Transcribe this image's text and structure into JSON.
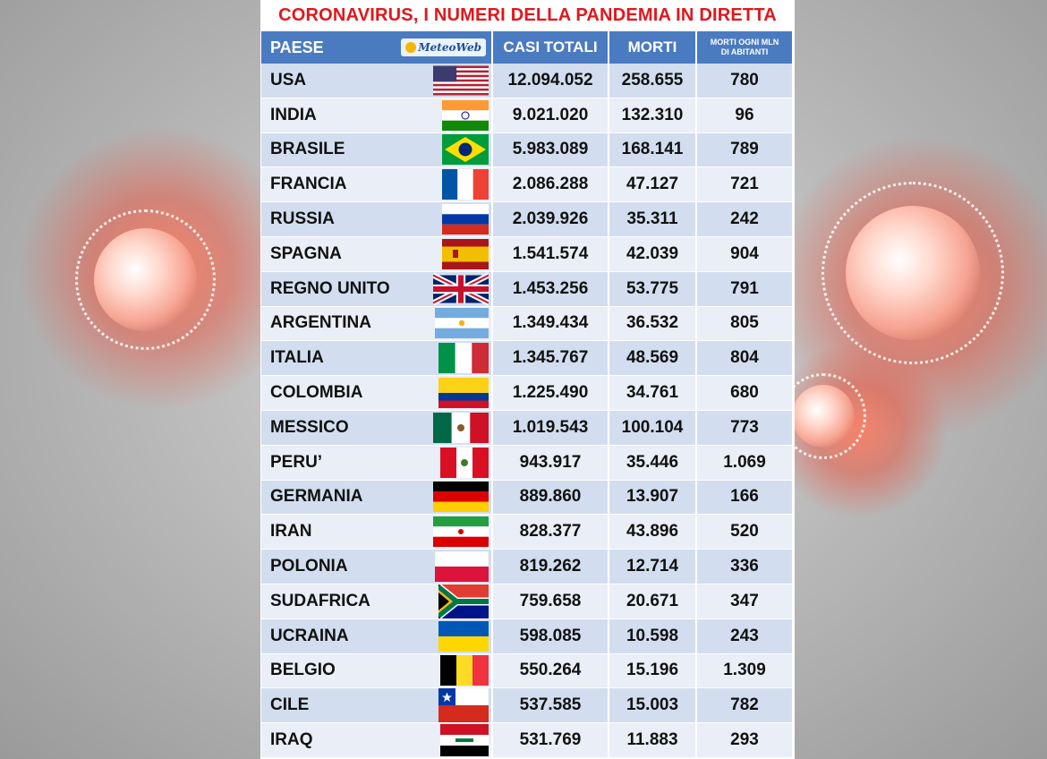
{
  "title": "CORONAVIRUS, I NUMERI DELLA PANDEMIA IN DIRETTA",
  "header": {
    "paese": "PAESE",
    "logo": "MeteoWeb",
    "casi_totali": "CASI TOTALI",
    "morti": "MORTI",
    "morti_mln_line1": "MORTI OGNI MLN",
    "morti_mln_line2": "DI ABITANTI"
  },
  "colors": {
    "title": "#e3161b",
    "header_bg": "#4a7bc0",
    "row_odd": "#d2deef",
    "row_even": "#e9eef7"
  },
  "rows": [
    {
      "paese": "USA",
      "flag": "usa-flag",
      "casi": "12.094.052",
      "morti": "258.655",
      "mln": "780"
    },
    {
      "paese": "INDIA",
      "flag": "india-flag",
      "casi": "9.021.020",
      "morti": "132.310",
      "mln": "96"
    },
    {
      "paese": "BRASILE",
      "flag": "brazil-flag",
      "casi": "5.983.089",
      "morti": "168.141",
      "mln": "789"
    },
    {
      "paese": "FRANCIA",
      "flag": "france-flag",
      "casi": "2.086.288",
      "morti": "47.127",
      "mln": "721"
    },
    {
      "paese": "RUSSIA",
      "flag": "russia-flag",
      "casi": "2.039.926",
      "morti": "35.311",
      "mln": "242"
    },
    {
      "paese": "SPAGNA",
      "flag": "spain-flag",
      "casi": "1.541.574",
      "morti": "42.039",
      "mln": "904"
    },
    {
      "paese": "REGNO UNITO",
      "flag": "uk-flag",
      "casi": "1.453.256",
      "morti": "53.775",
      "mln": "791"
    },
    {
      "paese": "ARGENTINA",
      "flag": "argentina-flag",
      "casi": "1.349.434",
      "morti": "36.532",
      "mln": "805"
    },
    {
      "paese": "ITALIA",
      "flag": "italy-flag",
      "casi": "1.345.767",
      "morti": "48.569",
      "mln": "804"
    },
    {
      "paese": "COLOMBIA",
      "flag": "colombia-flag",
      "casi": "1.225.490",
      "morti": "34.761",
      "mln": "680"
    },
    {
      "paese": "MESSICO",
      "flag": "mexico-flag",
      "casi": "1.019.543",
      "morti": "100.104",
      "mln": "773"
    },
    {
      "paese": "PERU’",
      "flag": "peru-flag",
      "casi": "943.917",
      "morti": "35.446",
      "mln": "1.069"
    },
    {
      "paese": "GERMANIA",
      "flag": "germany-flag",
      "casi": "889.860",
      "morti": "13.907",
      "mln": "166"
    },
    {
      "paese": "IRAN",
      "flag": "iran-flag",
      "casi": "828.377",
      "morti": "43.896",
      "mln": "520"
    },
    {
      "paese": "POLONIA",
      "flag": "poland-flag",
      "casi": "819.262",
      "morti": "12.714",
      "mln": "336"
    },
    {
      "paese": "SUDAFRICA",
      "flag": "south-africa-flag",
      "casi": "759.658",
      "morti": "20.671",
      "mln": "347"
    },
    {
      "paese": "UCRAINA",
      "flag": "ukraine-flag",
      "casi": "598.085",
      "morti": "10.598",
      "mln": "243"
    },
    {
      "paese": "BELGIO",
      "flag": "belgium-flag",
      "casi": "550.264",
      "morti": "15.196",
      "mln": "1.309"
    },
    {
      "paese": "CILE",
      "flag": "chile-flag",
      "casi": "537.585",
      "morti": "15.003",
      "mln": "782"
    },
    {
      "paese": "IRAQ",
      "flag": "iraq-flag",
      "casi": "531.769",
      "morti": "11.883",
      "mln": "293"
    }
  ]
}
